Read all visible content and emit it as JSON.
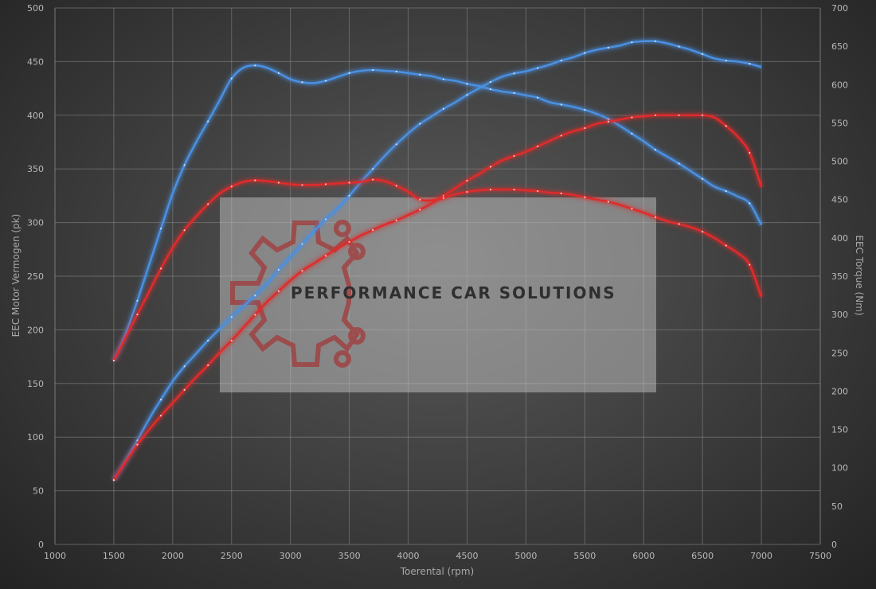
{
  "chart_data": {
    "type": "line",
    "xlabel": "Toerental (rpm)",
    "ylabel_left": "EEC Motor Vermogen (pk)",
    "ylabel_right": "EEC Torque (Nm)",
    "xlim": [
      1000,
      7500
    ],
    "ylim_left": [
      0,
      500
    ],
    "ylim_right": [
      0,
      700
    ],
    "x_ticks": [
      "1000",
      "1500",
      "2000",
      "2500",
      "3000",
      "3500",
      "4000",
      "4500",
      "5000",
      "5500",
      "6000",
      "6500",
      "7000",
      "7500"
    ],
    "y_ticks_left": [
      "0",
      "50",
      "100",
      "150",
      "200",
      "250",
      "300",
      "350",
      "400",
      "450",
      "500"
    ],
    "y_ticks_right": [
      "0",
      "50",
      "100",
      "150",
      "200",
      "250",
      "300",
      "350",
      "400",
      "450",
      "500",
      "550",
      "600",
      "650",
      "700"
    ],
    "grid": true,
    "series": [
      {
        "id": "power-tuned",
        "axis": "left",
        "color": "#4a90e2",
        "x": [
          1500,
          1600,
          1700,
          1800,
          1900,
          2000,
          2100,
          2200,
          2300,
          2400,
          2500,
          2600,
          2700,
          2800,
          2900,
          3000,
          3100,
          3200,
          3300,
          3400,
          3500,
          3600,
          3700,
          3800,
          3900,
          4000,
          4100,
          4200,
          4300,
          4400,
          4500,
          4600,
          4700,
          4800,
          4900,
          5000,
          5100,
          5200,
          5300,
          5400,
          5500,
          5600,
          5700,
          5800,
          5900,
          6000,
          6100,
          6200,
          6300,
          6400,
          6500,
          6600,
          6700,
          6800,
          6900,
          7000
        ],
        "y": [
          60,
          78,
          97,
          117,
          135,
          152,
          166,
          178,
          190,
          201,
          212,
          222,
          232,
          243,
          256,
          268,
          280,
          292,
          303,
          313,
          325,
          338,
          350,
          362,
          373,
          383,
          392,
          399,
          406,
          412,
          419,
          425,
          431,
          436,
          439,
          441,
          444,
          447,
          451,
          454,
          458,
          461,
          463,
          465,
          468,
          469,
          469,
          467,
          464,
          461,
          457,
          453,
          451,
          450,
          448,
          445
        ]
      },
      {
        "id": "torque-tuned",
        "axis": "right",
        "color": "#4a90e2",
        "x": [
          1500,
          1600,
          1700,
          1800,
          1900,
          2000,
          2100,
          2200,
          2300,
          2400,
          2500,
          2600,
          2700,
          2800,
          2900,
          3000,
          3100,
          3200,
          3300,
          3400,
          3500,
          3600,
          3700,
          3800,
          3900,
          4000,
          4100,
          4200,
          4300,
          4400,
          4500,
          4600,
          4700,
          4800,
          4900,
          5000,
          5100,
          5200,
          5300,
          5400,
          5500,
          5600,
          5700,
          5800,
          5900,
          6000,
          6100,
          6200,
          6300,
          6400,
          6500,
          6600,
          6700,
          6800,
          6900,
          7000
        ],
        "y": [
          240,
          275,
          318,
          365,
          412,
          458,
          495,
          525,
          552,
          580,
          608,
          622,
          625,
          622,
          615,
          607,
          603,
          602,
          605,
          610,
          615,
          618,
          619,
          618,
          617,
          615,
          613,
          611,
          607,
          605,
          601,
          598,
          594,
          591,
          589,
          586,
          583,
          577,
          574,
          571,
          567,
          562,
          555,
          546,
          536,
          526,
          515,
          506,
          497,
          487,
          477,
          467,
          461,
          454,
          445,
          417
        ]
      },
      {
        "id": "power-stock",
        "axis": "left",
        "color": "#e02b2b",
        "x": [
          1500,
          1600,
          1700,
          1800,
          1900,
          2000,
          2100,
          2200,
          2300,
          2400,
          2500,
          2600,
          2700,
          2800,
          2900,
          3000,
          3100,
          3200,
          3300,
          3400,
          3500,
          3600,
          3700,
          3800,
          3900,
          4000,
          4100,
          4200,
          4300,
          4400,
          4500,
          4600,
          4700,
          4800,
          4900,
          5000,
          5100,
          5200,
          5300,
          5400,
          5500,
          5600,
          5700,
          5800,
          5900,
          6000,
          6100,
          6200,
          6300,
          6400,
          6500,
          6600,
          6700,
          6800,
          6900,
          7000
        ],
        "y": [
          60,
          77,
          93,
          107,
          120,
          132,
          144,
          156,
          167,
          179,
          190,
          202,
          214,
          226,
          236,
          246,
          255,
          262,
          269,
          276,
          282,
          288,
          293,
          298,
          302,
          307,
          312,
          318,
          325,
          332,
          339,
          345,
          352,
          358,
          362,
          366,
          371,
          376,
          381,
          385,
          388,
          392,
          394,
          396,
          398,
          399,
          400,
          400,
          400,
          400,
          400,
          398,
          390,
          380,
          365,
          333
        ]
      },
      {
        "id": "torque-stock",
        "axis": "right",
        "color": "#e02b2b",
        "x": [
          1500,
          1600,
          1700,
          1800,
          1900,
          2000,
          2100,
          2200,
          2300,
          2400,
          2500,
          2600,
          2700,
          2800,
          2900,
          3000,
          3100,
          3200,
          3300,
          3400,
          3500,
          3600,
          3700,
          3800,
          3900,
          4000,
          4100,
          4200,
          4300,
          4400,
          4500,
          4600,
          4700,
          4800,
          4900,
          5000,
          5100,
          5200,
          5300,
          5400,
          5500,
          5600,
          5700,
          5800,
          5900,
          6000,
          6100,
          6200,
          6300,
          6400,
          6500,
          6600,
          6700,
          6800,
          6900,
          7000
        ],
        "y": [
          240,
          270,
          300,
          330,
          360,
          387,
          410,
          428,
          444,
          458,
          467,
          473,
          475,
          474,
          472,
          470,
          469,
          469,
          470,
          471,
          472,
          473,
          476,
          474,
          468,
          460,
          450,
          449,
          452,
          457,
          460,
          462,
          463,
          463,
          463,
          462,
          461,
          459,
          458,
          456,
          453,
          450,
          447,
          443,
          438,
          433,
          427,
          422,
          418,
          414,
          408,
          400,
          390,
          380,
          365,
          323
        ]
      }
    ],
    "watermark": {
      "text": "PERFORMANCE CAR SOLUTIONS",
      "logo": "gear-circuit-logo"
    }
  }
}
